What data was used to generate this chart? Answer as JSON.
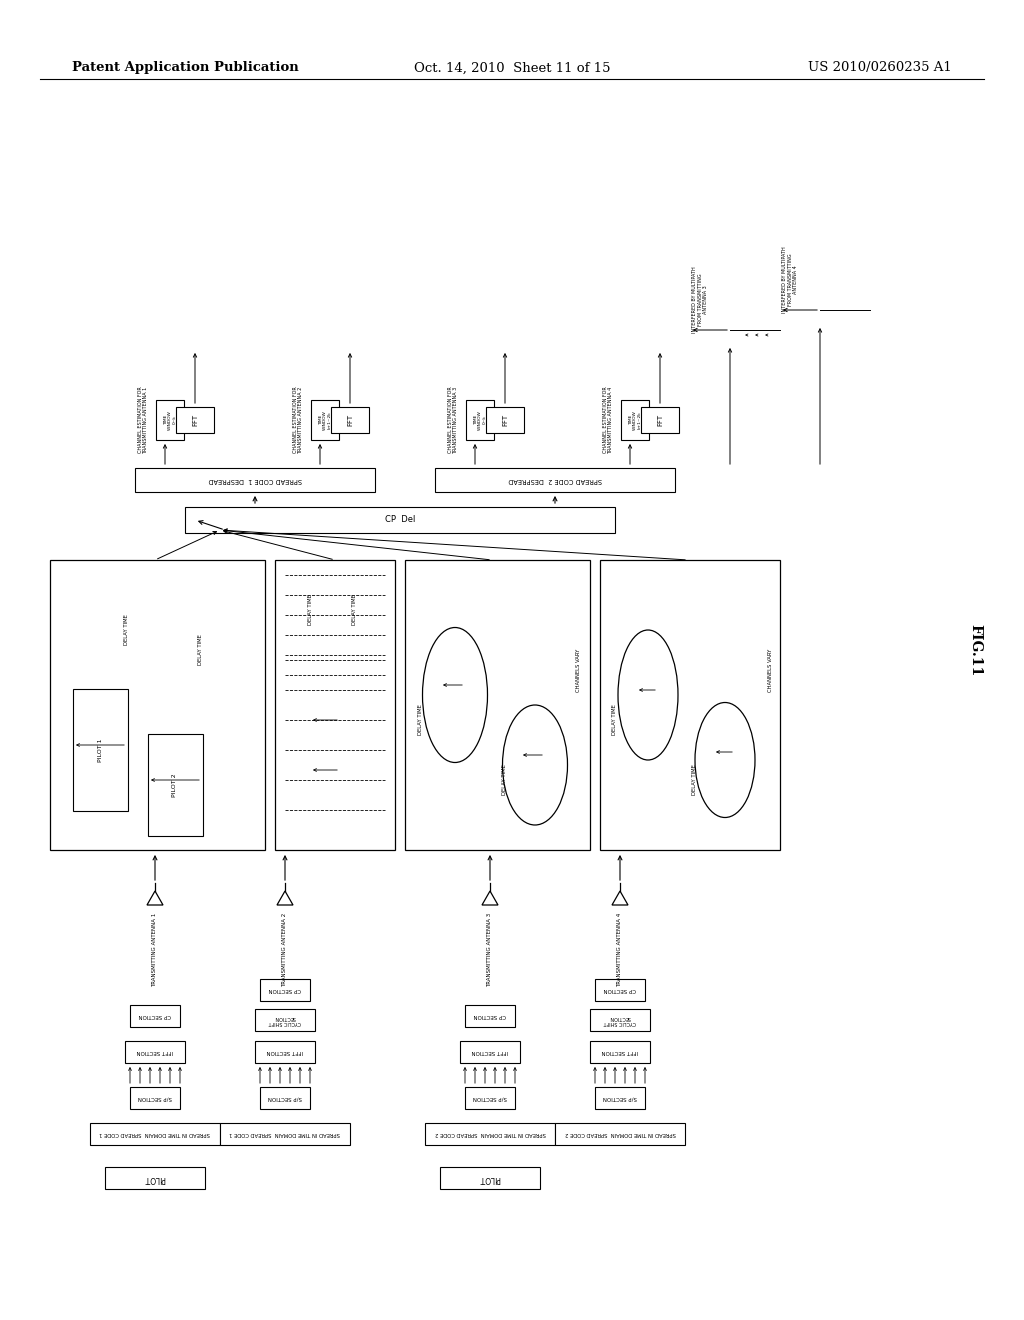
{
  "header_left": "Patent Application Publication",
  "header_mid": "Oct. 14, 2010  Sheet 11 of 15",
  "header_right": "US 2010/0260235 A1",
  "fig_label": "FIG.11",
  "background": "#ffffff"
}
